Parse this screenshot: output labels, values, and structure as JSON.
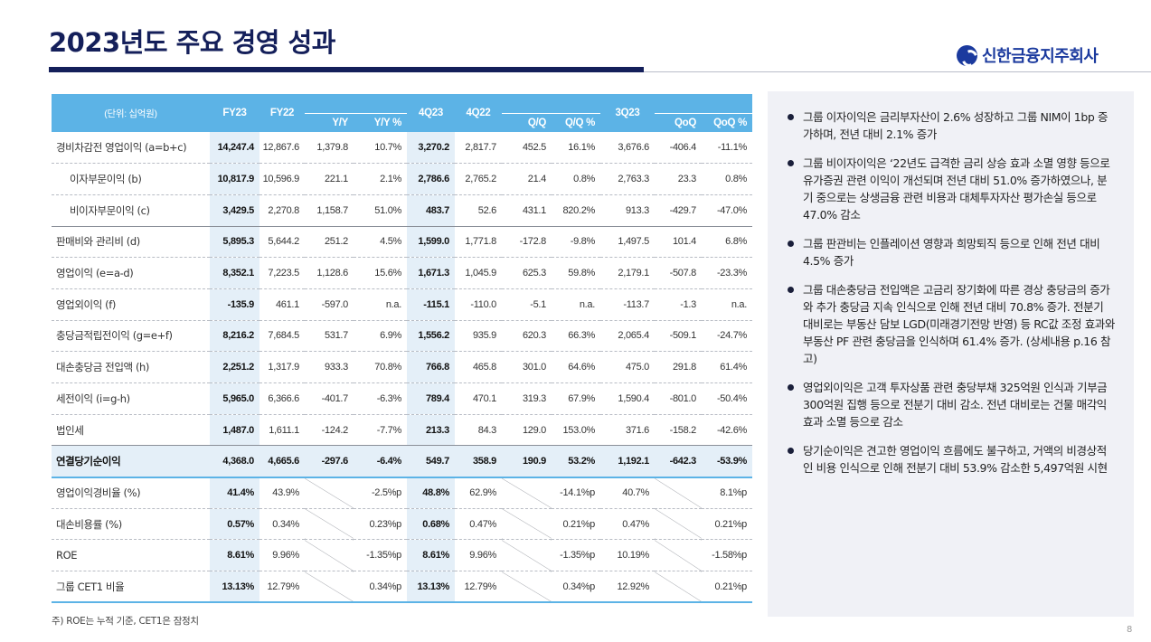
{
  "title": "2023년도 주요 경영 성과",
  "logo": {
    "text": "신한금융지주회사",
    "icon": "shinhan-logo-icon"
  },
  "table": {
    "unit": "(단위: 십억원)",
    "header_top": [
      "FY23",
      "FY22",
      "4Q23",
      "4Q22",
      "3Q23"
    ],
    "header_sub": [
      "Y/Y",
      "Y/Y %",
      "Q/Q",
      "Q/Q %",
      "QoQ",
      "QoQ %"
    ],
    "rows": [
      {
        "label": "경비차감전 영업이익 (a=b+c)",
        "values": [
          "14,247.4",
          "12,867.6",
          "1,379.8",
          "10.7%",
          "3,270.2",
          "2,817.7",
          "452.5",
          "16.1%",
          "3,676.6",
          "-406.4",
          "-11.1%"
        ]
      },
      {
        "label": "이자부문이익 (b)",
        "values": [
          "10,817.9",
          "10,596.9",
          "221.1",
          "2.1%",
          "2,786.6",
          "2,765.2",
          "21.4",
          "0.8%",
          "2,763.3",
          "23.3",
          "0.8%"
        ]
      },
      {
        "label": "비이자부문이익 (c)",
        "values": [
          "3,429.5",
          "2,270.8",
          "1,158.7",
          "51.0%",
          "483.7",
          "52.6",
          "431.1",
          "820.2%",
          "913.3",
          "-429.7",
          "-47.0%"
        ]
      },
      {
        "label": "판매비와 관리비 (d)",
        "values": [
          "5,895.3",
          "5,644.2",
          "251.2",
          "4.5%",
          "1,599.0",
          "1,771.8",
          "-172.8",
          "-9.8%",
          "1,497.5",
          "101.4",
          "6.8%"
        ]
      },
      {
        "label": "영업이익 (e=a-d)",
        "values": [
          "8,352.1",
          "7,223.5",
          "1,128.6",
          "15.6%",
          "1,671.3",
          "1,045.9",
          "625.3",
          "59.8%",
          "2,179.1",
          "-507.8",
          "-23.3%"
        ]
      },
      {
        "label": "영업외이익 (f)",
        "values": [
          "-135.9",
          "461.1",
          "-597.0",
          "n.a.",
          "-115.1",
          "-110.0",
          "-5.1",
          "n.a.",
          "-113.7",
          "-1.3",
          "n.a."
        ]
      },
      {
        "label": "충당금적립전이익 (g=e+f)",
        "values": [
          "8,216.2",
          "7,684.5",
          "531.7",
          "6.9%",
          "1,556.2",
          "935.9",
          "620.3",
          "66.3%",
          "2,065.4",
          "-509.1",
          "-24.7%"
        ]
      },
      {
        "label": "대손충당금 전입액 (h)",
        "values": [
          "2,251.2",
          "1,317.9",
          "933.3",
          "70.8%",
          "766.8",
          "465.8",
          "301.0",
          "64.6%",
          "475.0",
          "291.8",
          "61.4%"
        ]
      },
      {
        "label": "세전이익 (i=g-h)",
        "values": [
          "5,965.0",
          "6,366.6",
          "-401.7",
          "-6.3%",
          "789.4",
          "470.1",
          "319.3",
          "67.9%",
          "1,590.4",
          "-801.0",
          "-50.4%"
        ]
      },
      {
        "label": "법인세",
        "values": [
          "1,487.0",
          "1,611.1",
          "-124.2",
          "-7.7%",
          "213.3",
          "84.3",
          "129.0",
          "153.0%",
          "371.6",
          "-158.2",
          "-42.6%"
        ]
      },
      {
        "label": "연결당기순이익",
        "values": [
          "4,368.0",
          "4,665.6",
          "-297.6",
          "-6.4%",
          "549.7",
          "358.9",
          "190.9",
          "53.2%",
          "1,192.1",
          "-642.3",
          "-53.9%"
        ]
      },
      {
        "label": "영업이익경비율 (%)",
        "values": [
          "41.4%",
          "43.9%",
          "",
          "-2.5%p",
          "48.8%",
          "62.9%",
          "",
          "-14.1%p",
          "40.7%",
          "",
          "8.1%p"
        ]
      },
      {
        "label": "대손비용률 (%)",
        "values": [
          "0.57%",
          "0.34%",
          "",
          "0.23%p",
          "0.68%",
          "0.47%",
          "",
          "0.21%p",
          "0.47%",
          "",
          "0.21%p"
        ]
      },
      {
        "label": "ROE",
        "values": [
          "8.61%",
          "9.96%",
          "",
          "-1.35%p",
          "8.61%",
          "9.96%",
          "",
          "-1.35%p",
          "10.19%",
          "",
          "-1.58%p"
        ]
      },
      {
        "label": "그룹 CET1 비율",
        "values": [
          "13.13%",
          "12.79%",
          "",
          "0.34%p",
          "13.13%",
          "12.79%",
          "",
          "0.34%p",
          "12.92%",
          "",
          "0.21%p"
        ]
      }
    ]
  },
  "footnote": "주) ROE는 누적 기준, CET1은 잠정치",
  "page_number": "8",
  "bullets": [
    "그룹 이자이익은 금리부자산이 2.6% 성장하고 그룹 NIM이 1bp 증가하며, 전년 대비 2.1% 증가",
    "그룹 비이자이익은 ‘22년도 급격한 금리 상승 효과 소멸 영향 등으로 유가증권 관련 이익이 개선되며 전년 대비 51.0% 증가하였으나, 분기 중으로는 상생금융 관련 비용과 대체투자자산 평가손실 등으로 47.0% 감소",
    "그룹 판관비는 인플레이션 영향과 희망퇴직 등으로 인해 전년 대비 4.5% 증가",
    "그룹 대손충당금 전입액은 고금리 장기화에 따른 경상 충당금의 증가와 추가 충당금 지속 인식으로 인해 전년 대비 70.8% 증가. 전분기 대비로는 부동산 담보 LGD(미래경기전망 반영) 등 RC값 조정 효과와 부동산 PF 관련 충당금을 인식하며 61.4% 증가. (상세내용 p.16 참고)",
    "영업외이익은 고객 투자상품 관련 충당부채 325억원 인식과 기부금 300억원 집행 등으로 전분기 대비 감소. 전년 대비로는 건물 매각익 효과 소멸 등으로 감소",
    "당기순이익은 견고한 영업이익 흐름에도 불구하고, 거액의 비경상적인 비용 인식으로 인해 전분기 대비 53.9% 감소한 5,497억원 시현"
  ]
}
